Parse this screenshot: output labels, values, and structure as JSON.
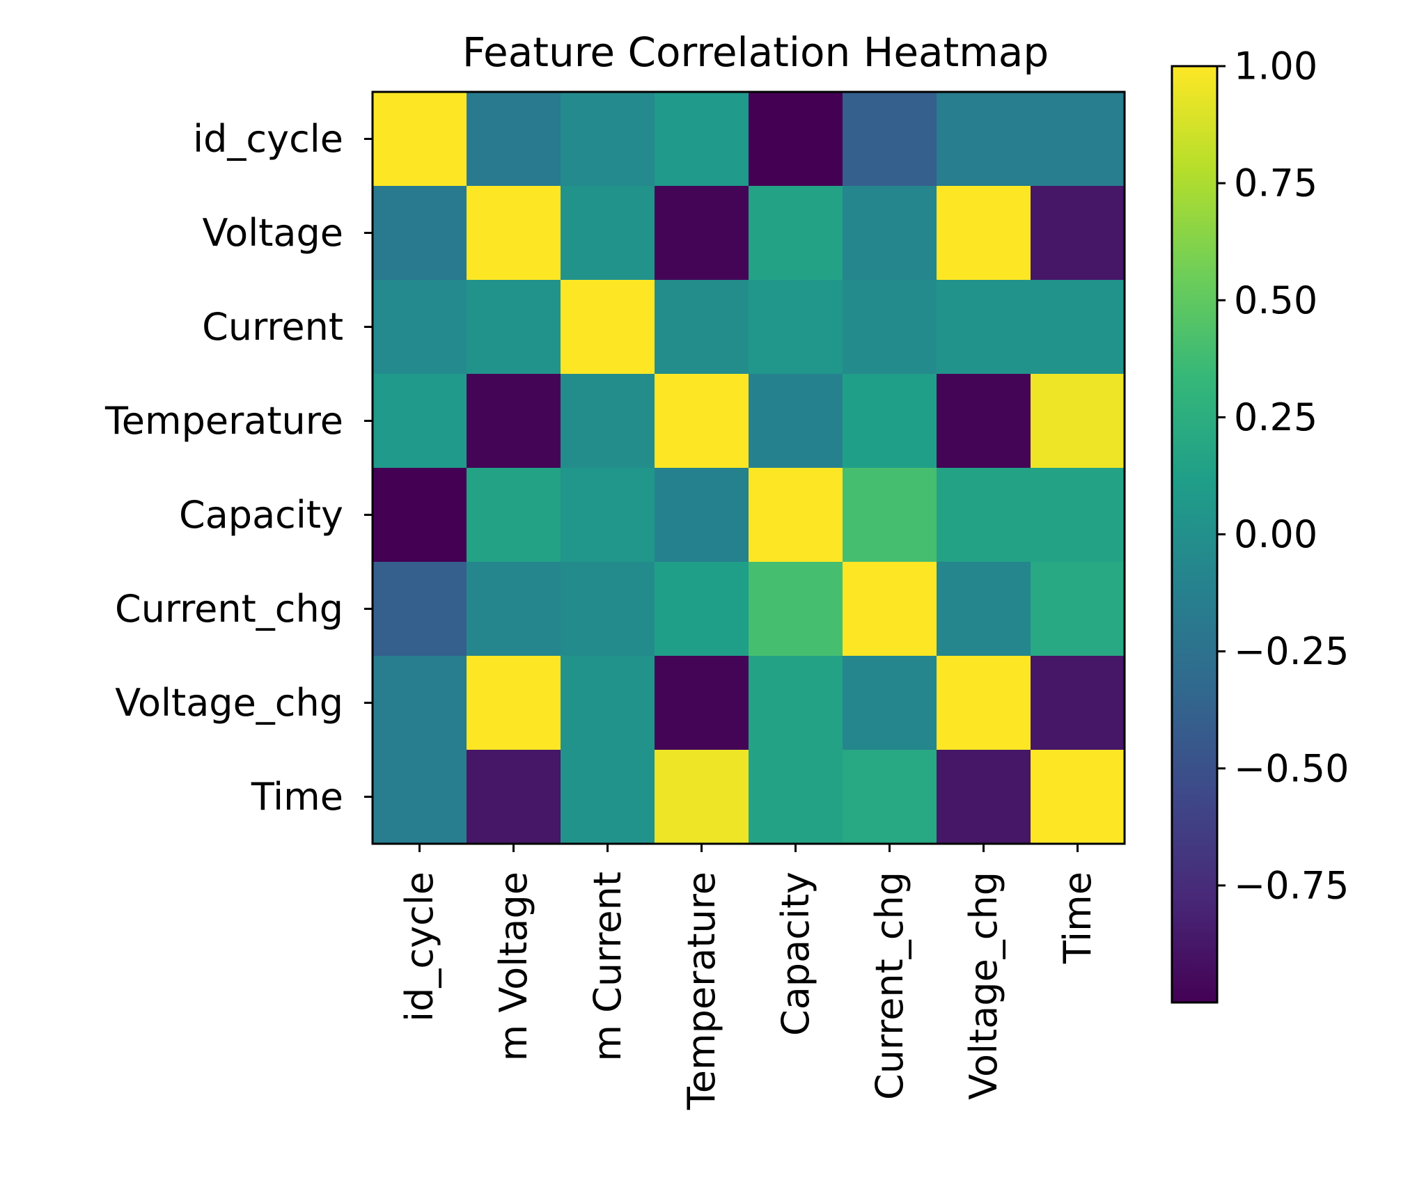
{
  "chart_data": {
    "type": "heatmap",
    "title": "Feature Correlation Heatmap",
    "row_labels": [
      "id_cycle",
      "Voltage",
      "Current",
      "Temperature",
      "Capacity",
      "Current_chg",
      "Voltage_chg",
      "Time"
    ],
    "col_labels": [
      "id_cycle",
      "m Voltage",
      "m Current",
      "Temperature",
      "Capacity",
      "Current_chg",
      "Voltage_chg",
      "Time"
    ],
    "values": [
      [
        1.0,
        -0.18,
        -0.05,
        0.08,
        -1.0,
        -0.4,
        -0.15,
        -0.15
      ],
      [
        -0.18,
        1.0,
        0.02,
        -0.98,
        0.15,
        -0.08,
        1.0,
        -0.88
      ],
      [
        -0.05,
        0.02,
        1.0,
        -0.02,
        0.05,
        -0.04,
        0.02,
        0.02
      ],
      [
        0.08,
        -0.98,
        -0.02,
        1.0,
        -0.12,
        0.12,
        -0.98,
        0.95
      ],
      [
        -1.0,
        0.15,
        0.05,
        -0.12,
        1.0,
        0.4,
        0.15,
        0.15
      ],
      [
        -0.4,
        -0.08,
        -0.04,
        0.12,
        0.4,
        1.0,
        -0.08,
        0.2
      ],
      [
        -0.15,
        1.0,
        0.02,
        -0.98,
        0.15,
        -0.08,
        1.0,
        -0.88
      ],
      [
        -0.15,
        -0.88,
        0.02,
        0.95,
        0.15,
        0.2,
        -0.88,
        1.0
      ]
    ],
    "colormap": "viridis",
    "colorbar": {
      "vmin": -1.0,
      "vmax": 1.0,
      "ticks": [
        1.0,
        0.75,
        0.5,
        0.25,
        0.0,
        -0.25,
        -0.5,
        -0.75
      ],
      "tick_labels": [
        "1.00",
        "0.75",
        "0.50",
        "0.25",
        "0.00",
        "−0.25",
        "−0.50",
        "−0.75"
      ]
    }
  },
  "colors": {
    "viridis_stops": [
      "#440154",
      "#482878",
      "#3e4989",
      "#31688e",
      "#26828e",
      "#1f9e89",
      "#35b779",
      "#6ece58",
      "#b5de2b",
      "#fde725"
    ],
    "axis": "#000000"
  }
}
